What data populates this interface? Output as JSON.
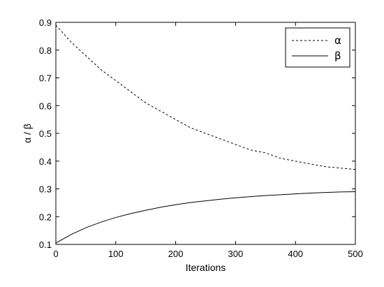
{
  "chart_data": {
    "type": "line",
    "title": "",
    "xlabel": "Iterations",
    "ylabel": "α / β",
    "xlim": [
      0,
      500
    ],
    "ylim": [
      0.1,
      0.9
    ],
    "xticks": [
      0,
      100,
      200,
      300,
      400,
      500
    ],
    "xtick_labels": [
      "0",
      "100",
      "200",
      "300",
      "400",
      "500"
    ],
    "yticks": [
      0.1,
      0.2,
      0.3,
      0.4,
      0.5,
      0.6,
      0.7,
      0.8,
      0.9
    ],
    "ytick_labels": [
      "0.1",
      "0.2",
      "0.3",
      "0.4",
      "0.5",
      "0.6",
      "0.7",
      "0.8",
      "0.9"
    ],
    "grid": false,
    "legend_position": "top-right",
    "series": [
      {
        "name": "α",
        "line_style": "dashed",
        "color": "#000000",
        "x": [
          0,
          25,
          50,
          75,
          100,
          125,
          150,
          175,
          200,
          225,
          250,
          275,
          300,
          325,
          350,
          375,
          400,
          425,
          450,
          475,
          500
        ],
        "y": [
          0.89,
          0.83,
          0.78,
          0.73,
          0.69,
          0.65,
          0.61,
          0.58,
          0.55,
          0.52,
          0.5,
          0.48,
          0.46,
          0.44,
          0.43,
          0.41,
          0.4,
          0.39,
          0.38,
          0.375,
          0.37
        ]
      },
      {
        "name": "β",
        "line_style": "solid",
        "color": "#000000",
        "x": [
          0,
          25,
          50,
          75,
          100,
          125,
          150,
          175,
          200,
          225,
          250,
          275,
          300,
          325,
          350,
          375,
          400,
          425,
          450,
          475,
          500
        ],
        "y": [
          0.105,
          0.135,
          0.16,
          0.18,
          0.197,
          0.211,
          0.223,
          0.234,
          0.243,
          0.251,
          0.257,
          0.263,
          0.268,
          0.272,
          0.276,
          0.279,
          0.282,
          0.285,
          0.287,
          0.289,
          0.29
        ]
      }
    ]
  }
}
